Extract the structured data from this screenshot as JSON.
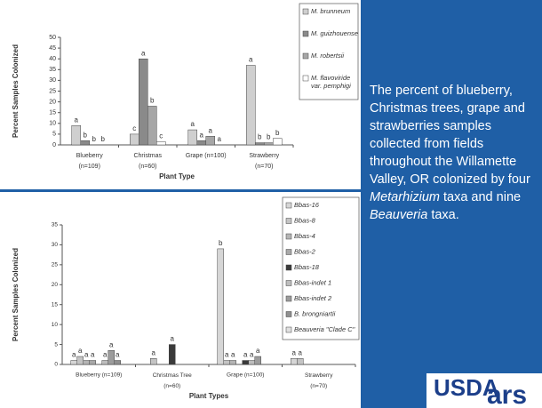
{
  "chart_data": [
    {
      "type": "bar",
      "ylabel": "Percent Samples Colonized",
      "xlabel": "Plant Type",
      "categories": [
        "Blueberry\n(n=109)",
        "Christmas\n(n=60)",
        "Grape (n=100)",
        "Strawberry\n(n=70)"
      ],
      "series": [
        {
          "name": "M. brunneum",
          "color": "#cfcfcf",
          "values": [
            9,
            5,
            7,
            37
          ],
          "letters": [
            "a",
            "c",
            "a",
            "a"
          ]
        },
        {
          "name": "M. guizhouense",
          "color": "#8a8a8a",
          "values": [
            2,
            40,
            2,
            1
          ],
          "letters": [
            "b",
            "a",
            "a",
            "b"
          ]
        },
        {
          "name": "M. robertsii",
          "color": "#a6a6a6",
          "values": [
            0,
            18,
            4,
            1
          ],
          "letters": [
            "b",
            "b",
            "a",
            "b"
          ]
        },
        {
          "name": "M. flavoviride var. pemphigi",
          "color": "#ffffff",
          "values": [
            0,
            1.5,
            0,
            3
          ],
          "letters": [
            "b",
            "c",
            "a",
            "b"
          ]
        }
      ],
      "ylim": [
        0,
        50
      ],
      "yticks": [
        0,
        5,
        10,
        15,
        20,
        25,
        30,
        35,
        40,
        45,
        50
      ]
    },
    {
      "type": "bar",
      "ylabel": "Percent Samples Colonized",
      "xlabel": "Plant Types",
      "categories": [
        "Blueberry (n=109)",
        "Christmas Tree\n(n=60)",
        "Grape (n=100)",
        "Strawberry\n(n=70)"
      ],
      "series": [
        {
          "name": "Bbas-16",
          "color": "#d6d6d6",
          "values": [
            1,
            0,
            29,
            1.5
          ],
          "letters": [
            "a",
            null,
            "b",
            "a"
          ]
        },
        {
          "name": "Bbas-8",
          "color": "#c4c4c4",
          "values": [
            2,
            1.5,
            1,
            1.5
          ],
          "letters": [
            "a",
            "a",
            "a",
            "a"
          ]
        },
        {
          "name": "Bbas-4",
          "color": "#b5b5b5",
          "values": [
            1,
            0,
            1,
            0
          ],
          "letters": [
            "a",
            null,
            "a",
            null
          ]
        },
        {
          "name": "Bbas-2",
          "color": "#a8a8a8",
          "values": [
            1,
            0,
            0,
            0
          ],
          "letters": [
            "a",
            null,
            null,
            null
          ]
        },
        {
          "name": "Bbas-18",
          "color": "#3a3a3a",
          "values": [
            0,
            5,
            1,
            0
          ],
          "letters": [
            null,
            "a",
            "a",
            null
          ]
        },
        {
          "name": "Bbas-indet 1",
          "color": "#bdbdbd",
          "values": [
            1,
            0,
            1,
            0
          ],
          "letters": [
            "a",
            null,
            "a",
            null
          ]
        },
        {
          "name": "Bbas-indet 2",
          "color": "#9c9c9c",
          "values": [
            3.5,
            0,
            2,
            0
          ],
          "letters": [
            "a",
            null,
            "a",
            null
          ]
        },
        {
          "name": "B. brongniartii",
          "color": "#8f8f8f",
          "values": [
            1,
            0,
            0,
            0
          ],
          "letters": [
            "a",
            null,
            null,
            null
          ]
        },
        {
          "name": "Beauveria \"Clade C\"",
          "color": "#e0e0e0",
          "values": [
            0,
            0,
            0,
            0
          ],
          "letters": [
            null,
            null,
            null,
            null
          ]
        }
      ],
      "ylim": [
        0,
        35
      ],
      "yticks": [
        0,
        5,
        10,
        15,
        20,
        25,
        30,
        35
      ]
    }
  ],
  "caption": [
    "The percent of blueberry, Christmas trees, grape and strawberries samples collected from fields throughout the Willamette Valley, OR colonized by four ",
    "Metarhizium",
    " taxa and nine ",
    "Beauveria",
    " taxa."
  ],
  "logo": {
    "agency": "USDA",
    "service": "ars"
  }
}
